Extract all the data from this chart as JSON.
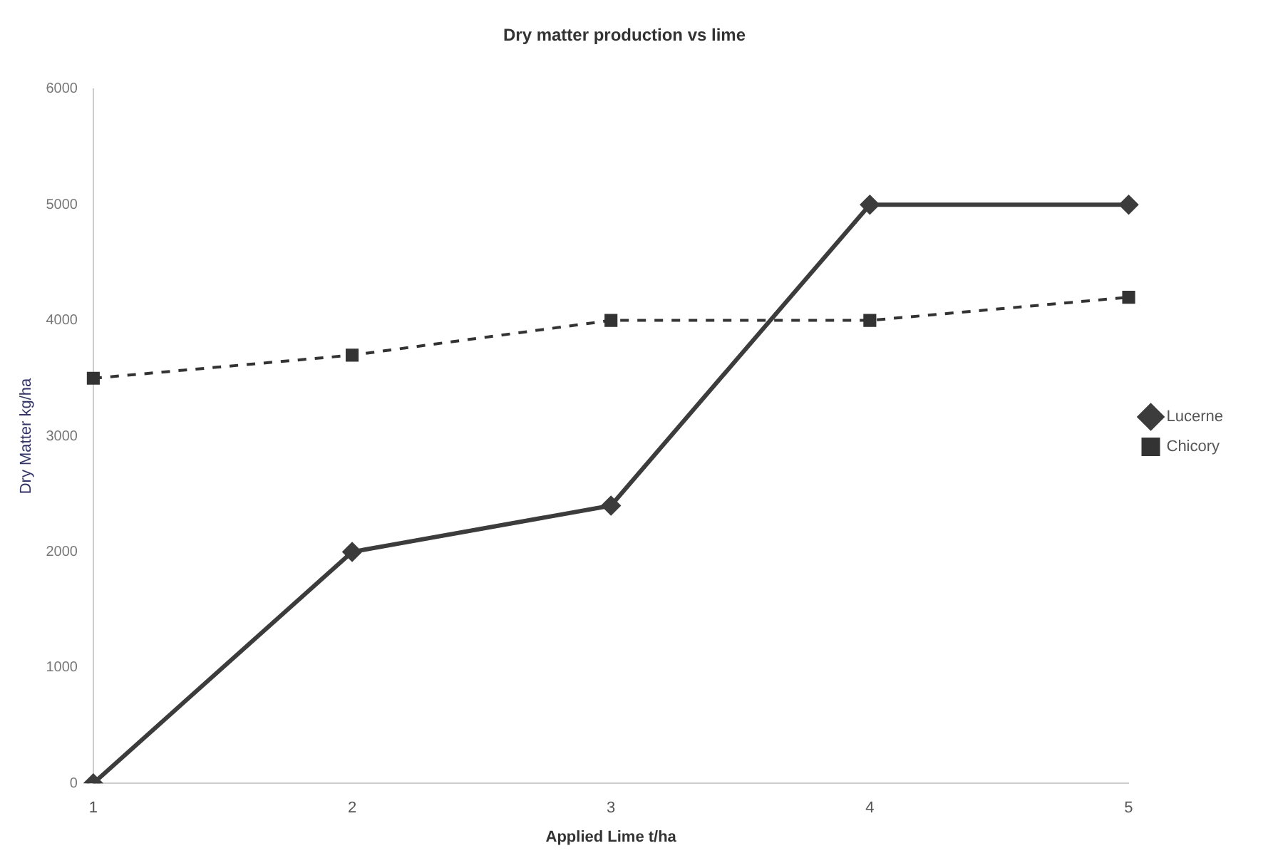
{
  "chart_data": {
    "type": "line",
    "title": "Dry matter production vs lime",
    "xlabel": "Applied Lime t/ha",
    "ylabel": "Dry Matter kg/ha",
    "categories": [
      "1",
      "2",
      "3",
      "4",
      "5"
    ],
    "series": [
      {
        "name": "Lucerne",
        "color": "#3c3c3c",
        "values": [
          0,
          2000,
          2400,
          5000,
          5000
        ],
        "marker": "diamond",
        "line_style": "solid"
      },
      {
        "name": "Chicory",
        "color": "#333333",
        "values": [
          3500,
          3700,
          4000,
          4000,
          4200
        ],
        "marker": "square",
        "line_style": "dashed"
      }
    ],
    "ylim": [
      0,
      6000
    ],
    "yticks": [
      0,
      1000,
      2000,
      3000,
      4000,
      5000,
      6000
    ],
    "grid": false,
    "legend": "right"
  }
}
